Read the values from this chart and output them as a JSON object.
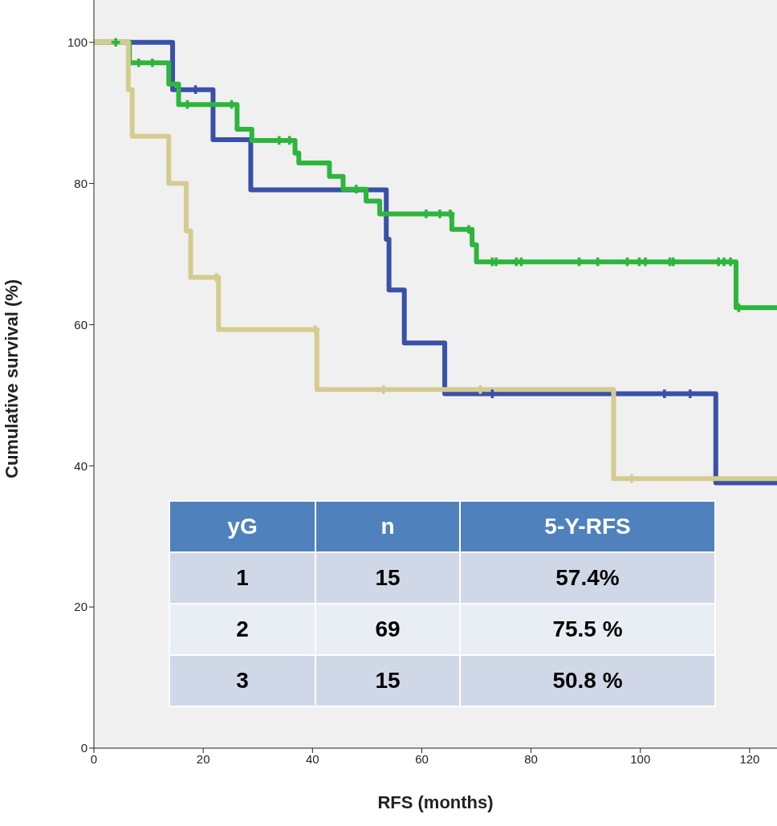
{
  "chart_data": {
    "type": "step",
    "xlabel": "RFS (months)",
    "ylabel": "Cumulative survival (%)",
    "xlim": [
      0,
      125
    ],
    "ylim": [
      0,
      106
    ],
    "xticks": [
      0,
      20,
      40,
      60,
      80,
      100,
      120
    ],
    "yticks": [
      0,
      20,
      40,
      60,
      80,
      100
    ],
    "grid": false,
    "legend": false,
    "series": [
      {
        "color": "#3a50a8",
        "x": [
          0,
          14.4,
          21.8,
          28.7,
          53.5,
          54.0,
          56.8,
          64.2,
          113.8,
          125
        ],
        "values": [
          100,
          93.3,
          86.2,
          79.1,
          72.1,
          64.9,
          57.4,
          50.2,
          37.6,
          37.6
        ]
      },
      {
        "color": "#2db53c",
        "x": [
          0,
          6.5,
          13.7,
          15.5,
          26.2,
          28.9,
          36.8,
          37.5,
          43.1,
          45.6,
          49.8,
          52.3,
          65.5,
          69.2,
          70,
          117.5,
          125
        ],
        "values": [
          100,
          97.1,
          94.1,
          91.2,
          87.7,
          86.1,
          84.3,
          82.9,
          81.0,
          79.2,
          77.5,
          75.7,
          73.5,
          71.3,
          68.9,
          62.4,
          62.4
        ]
      },
      {
        "color": "#d4cc8f",
        "x": [
          0,
          6.3,
          7,
          13.7,
          16.9,
          17.7,
          22.8,
          40.8,
          95.1,
          125
        ],
        "values": [
          100,
          93.3,
          86.7,
          80,
          73.3,
          66.7,
          59.3,
          50.8,
          38.2,
          38.2
        ]
      },
      {
        "type": "scatter",
        "marker": "cross",
        "color": "#3a50a8",
        "x": [
          18.6,
          72.9,
          104.4,
          109.1
        ],
        "values": [
          93.3,
          50.2,
          50.2,
          50.2
        ]
      },
      {
        "type": "scatter",
        "marker": "cross",
        "color": "#2db53c",
        "x": [
          4,
          8.2,
          10.7,
          17.1,
          25.2,
          33.9,
          35.8,
          48,
          60.8,
          63.3,
          65.2,
          68.6,
          72.9,
          73.6,
          77.3,
          78.2,
          88.8,
          92.2,
          97.6,
          99.8,
          100.9,
          105.4,
          106,
          114.3,
          115.3,
          116.5,
          118
        ],
        "values": [
          100,
          97.1,
          97.1,
          91.2,
          91.2,
          86.1,
          86.1,
          79.2,
          75.7,
          75.7,
          75.7,
          73.5,
          68.9,
          68.9,
          68.9,
          68.9,
          68.9,
          68.9,
          68.9,
          68.9,
          68.9,
          68.9,
          68.9,
          68.9,
          68.9,
          68.9,
          62.4
        ]
      },
      {
        "type": "scatter",
        "marker": "cross",
        "color": "#d4cc8f",
        "x": [
          22.4,
          40.5,
          53,
          70.7,
          98.4
        ],
        "values": [
          66.7,
          59.3,
          50.8,
          50.8,
          38.2
        ]
      }
    ],
    "annotations": [
      "yG",
      "n",
      "5-Y-RFS",
      "1",
      "15",
      "57.4%",
      "2",
      "69",
      "75.5 %",
      "3",
      "15",
      "50.8 %"
    ]
  }
}
